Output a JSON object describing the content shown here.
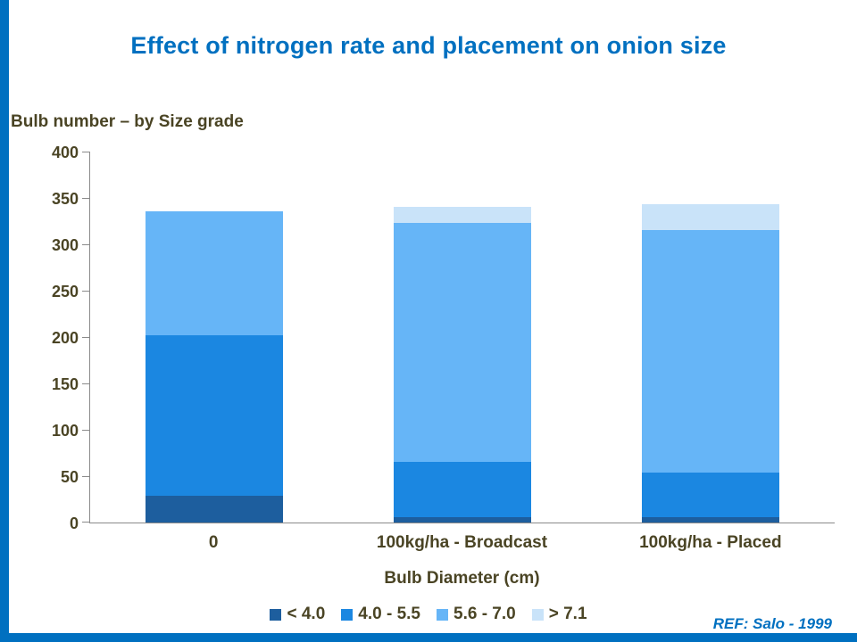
{
  "slide": {
    "title": "Effect of nitrogen rate and placement on onion size",
    "ref_label": "REF: Salo -  1999"
  },
  "chart_data": {
    "type": "bar",
    "stacked": true,
    "title": "Bulb number – by Size grade",
    "xlabel": "Bulb Diameter (cm)",
    "ylabel": "",
    "ylim": [
      0,
      400
    ],
    "ytick_step": 50,
    "yticks": [
      0,
      50,
      100,
      150,
      200,
      250,
      300,
      350,
      400
    ],
    "categories": [
      "0",
      "100kg/ha - Broadcast",
      "100kg/ha - Placed"
    ],
    "series": [
      {
        "name": "< 4.0",
        "color": "#1D5E9E",
        "values": [
          29,
          6,
          6
        ]
      },
      {
        "name": "4.0 - 5.5",
        "color": "#1B87E1",
        "values": [
          173,
          59,
          48
        ]
      },
      {
        "name": "5.6 - 7.0",
        "color": "#66B5F7",
        "values": [
          134,
          258,
          261
        ]
      },
      {
        "name": "> 7.1",
        "color": "#C9E3F9",
        "values": [
          0,
          17,
          28
        ]
      }
    ],
    "grid": false,
    "legend_position": "bottom"
  },
  "colors": {
    "title": "#0070C0",
    "axis_text": "#4A4424",
    "accent_bar": "#0070C0",
    "ref_text": "#0070C0"
  }
}
